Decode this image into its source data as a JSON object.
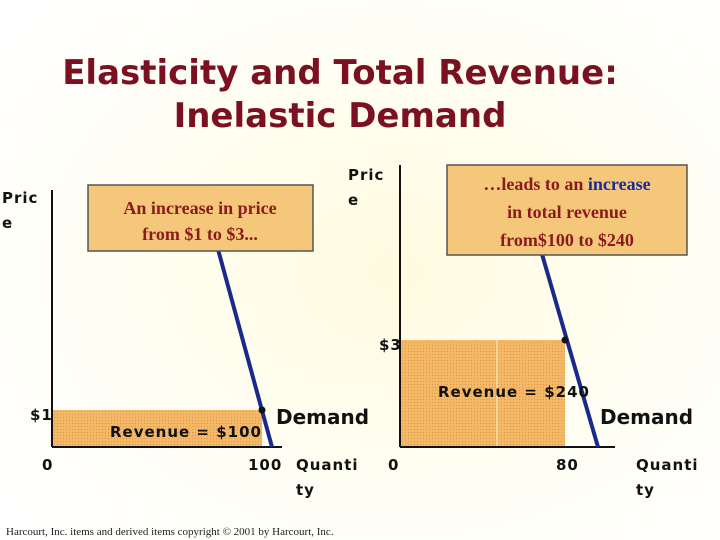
{
  "header": {
    "title_lines": [
      "Elasticity and Total Revenue:",
      "Inelastic Demand"
    ]
  },
  "panels": [
    {
      "y_label": [
        "Pric",
        "e"
      ],
      "x_label": [
        "Quanti",
        "ty"
      ],
      "price_label": "$1",
      "origin_label": "0",
      "quantity_label": "100",
      "revenue_label": "Revenue = $100",
      "curve_label": "Demand",
      "callout": [
        "An increase in price",
        "from $1 to $3..."
      ]
    },
    {
      "y_label": [
        "Pric",
        "e"
      ],
      "x_label": [
        "Quanti",
        "ty"
      ],
      "price_label": "$3",
      "origin_label": "0",
      "quantity_label": "80",
      "revenue_label": "Revenue = $240",
      "curve_label": "Demand",
      "callout": [
        "…leads to an ",
        "increase",
        "in total revenue",
        "from$100 to $240"
      ]
    }
  ],
  "footer": "Harcourt, Inc. items and derived items copyright © 2001 by Harcourt, Inc."
}
